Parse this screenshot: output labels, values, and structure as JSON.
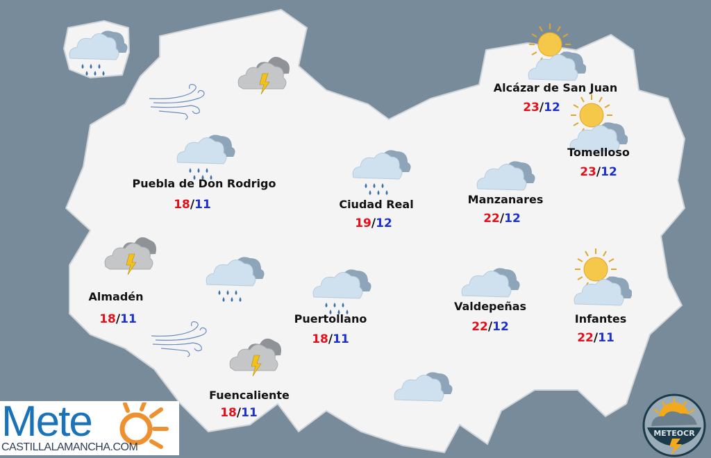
{
  "colors": {
    "background": "#778b9a",
    "map": "#f4f4f4",
    "high_temp": "#e3101b",
    "low_temp": "#1c30cc",
    "cloud_front": "#cfe0ee",
    "cloud_back": "#8ea4b8",
    "rain": "#3a70a8",
    "bolt": "#f2c21a"
  },
  "locations": [
    {
      "name": "Alcázar de San Juan",
      "high": "23",
      "low": "12"
    },
    {
      "name": "Tomelloso",
      "high": "23",
      "low": "12"
    },
    {
      "name": "Puebla de Don Rodrigo",
      "high": "18",
      "low": "11"
    },
    {
      "name": "Ciudad Real",
      "high": "19",
      "low": "12"
    },
    {
      "name": "Manzanares",
      "high": "22",
      "low": "12"
    },
    {
      "name": "Almadén",
      "high": "18",
      "low": "11"
    },
    {
      "name": "Puertollano",
      "high": "18",
      "low": "11"
    },
    {
      "name": "Valdepeñas",
      "high": "22",
      "low": "12"
    },
    {
      "name": "Infantes",
      "high": "22",
      "low": "11"
    },
    {
      "name": "Fuencaliente",
      "high": "18",
      "low": "11"
    }
  ],
  "separator": "/",
  "icons": [
    "rain-cloud",
    "storm-cloud",
    "wind",
    "rain-cloud",
    "sun-cloud",
    "sun-cloud",
    "rain-cloud",
    "cloud",
    "storm-cloud",
    "rain-cloud",
    "rain-cloud",
    "cloud",
    "sun-cloud",
    "wind",
    "storm-cloud",
    "cloud"
  ],
  "logos": {
    "left_main": "Mete",
    "left_sub": "CASTILLALAMANCHA.COM",
    "right": "METEOCR"
  }
}
